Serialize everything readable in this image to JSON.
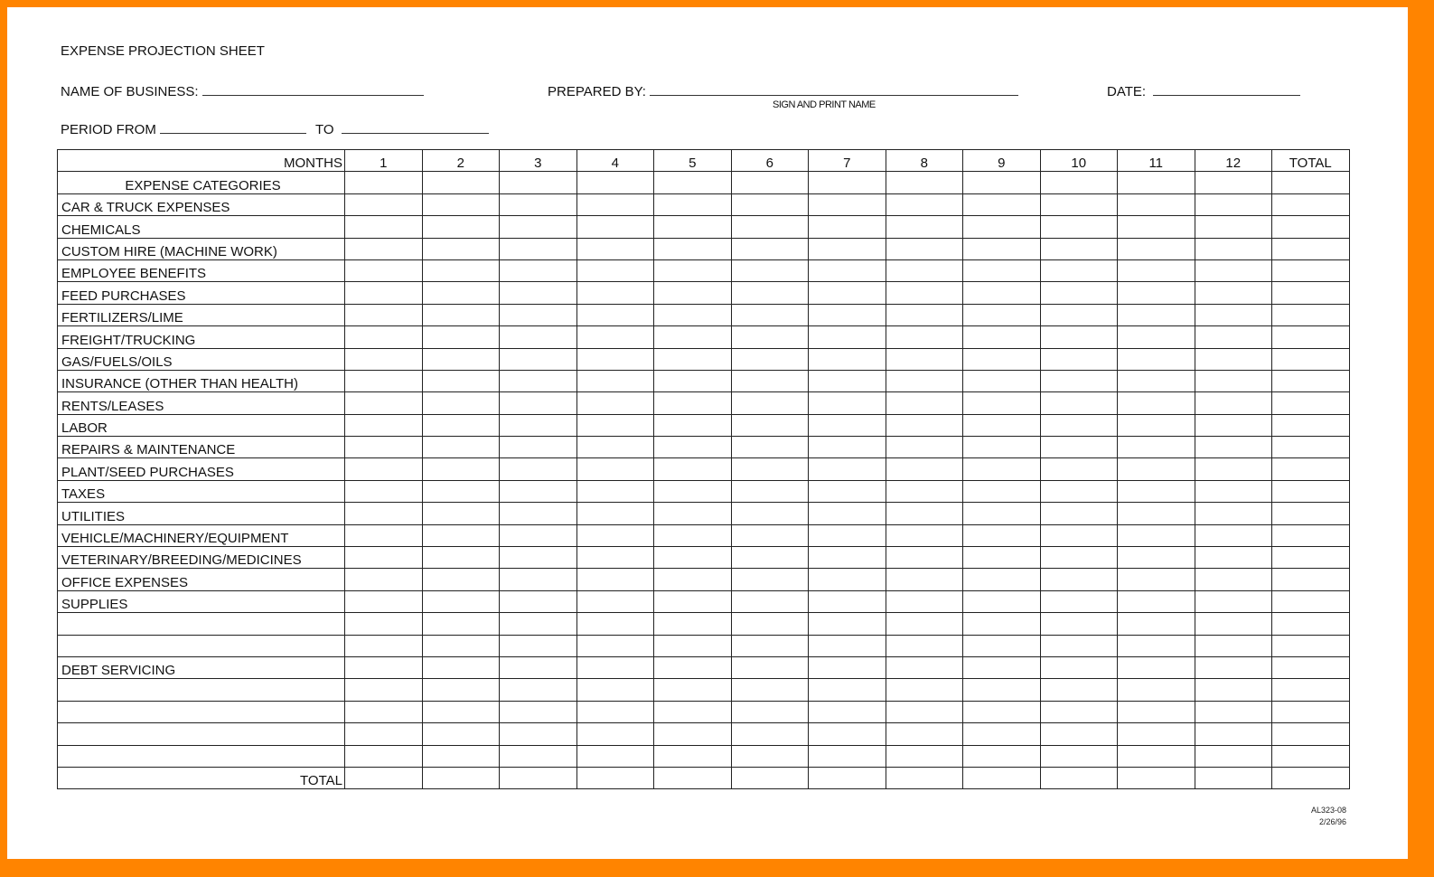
{
  "title": "EXPENSE PROJECTION SHEET",
  "fields": {
    "business_label": "NAME OF BUSINESS:",
    "prepared_label": "PREPARED BY:",
    "sign_caption": "SIGN AND PRINT NAME",
    "date_label": "DATE:",
    "period_from_label": "PERIOD FROM",
    "to_label": "TO"
  },
  "table": {
    "months_label": "MONTHS",
    "columns": [
      "1",
      "2",
      "3",
      "4",
      "5",
      "6",
      "7",
      "8",
      "9",
      "10",
      "11",
      "12",
      "TOTAL"
    ],
    "categories_header": "EXPENSE CATEGORIES",
    "rows": [
      "CAR & TRUCK EXPENSES",
      "CHEMICALS",
      "CUSTOM HIRE (MACHINE WORK)",
      "EMPLOYEE BENEFITS",
      "FEED PURCHASES",
      "FERTILIZERS/LIME",
      "FREIGHT/TRUCKING",
      "GAS/FUELS/OILS",
      "INSURANCE (OTHER THAN HEALTH)",
      "RENTS/LEASES",
      "LABOR",
      "REPAIRS & MAINTENANCE",
      "PLANT/SEED PURCHASES",
      "TAXES",
      "UTILITIES",
      "VEHICLE/MACHINERY/EQUIPMENT",
      "VETERINARY/BREEDING/MEDICINES",
      "OFFICE EXPENSES",
      "SUPPLIES",
      "",
      "",
      "DEBT SERVICING",
      "",
      "",
      "",
      ""
    ],
    "total_label": "TOTAL"
  },
  "footer": {
    "code": "AL323-08",
    "date": "2/26/96"
  },
  "colors": {
    "frame": "#ff8400"
  }
}
